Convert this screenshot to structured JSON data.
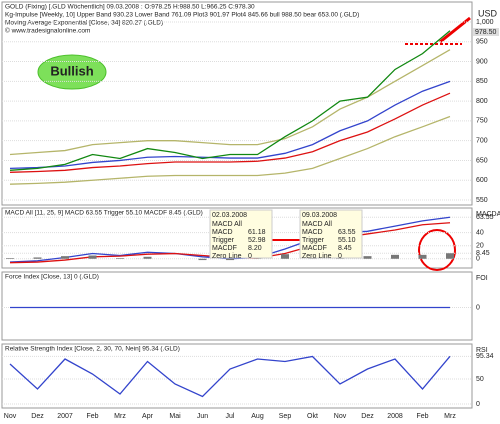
{
  "chart_data": [
    {
      "type": "line",
      "header": [
        "GOLD (Fixing) [.GLD  Wöchentlich] 09.03.2008 : O:978.25 H:988.50 L:966.25 C:978.30",
        "Kg-Impulse [Weekly, 10] Upper Band 930.23 Lower Band 761.09 Plot3 901.97 Plot4 845.66 bull 988.50 bear 653.00 (.GLD)",
        "Moving Average Exponential [Close, 34] 820.27 (.GLD)",
        "© www.tradesignalonline.com"
      ],
      "annotation": "Bullish",
      "unit": "USD",
      "last_label": "978.50",
      "categories": [
        "Nov",
        "Dez",
        "2007",
        "Feb",
        "Mrz",
        "Apr",
        "Mai",
        "Jun",
        "Jul",
        "Aug",
        "Sep",
        "Okt",
        "Nov",
        "Dez",
        "2008",
        "Feb",
        "Mrz"
      ],
      "ylim": [
        550,
        1000
      ],
      "yticks": [
        {
          "value": 1000,
          "label": "1,000"
        },
        950,
        900,
        850,
        800,
        750,
        700,
        650,
        600,
        550
      ],
      "series": [
        {
          "color": "#b5b56a",
          "values": [
            665,
            670,
            675,
            690,
            695,
            700,
            700,
            695,
            690,
            690,
            705,
            735,
            780,
            810,
            850,
            890,
            930
          ]
        },
        {
          "color": "#b5b56a",
          "values": [
            590,
            592,
            595,
            600,
            605,
            610,
            612,
            612,
            612,
            612,
            618,
            630,
            655,
            680,
            710,
            735,
            761
          ]
        },
        {
          "color": "#3344cc",
          "values": [
            630,
            632,
            636,
            645,
            650,
            658,
            660,
            658,
            656,
            656,
            668,
            690,
            725,
            750,
            790,
            825,
            850
          ]
        },
        {
          "color": "#dd1111",
          "values": [
            620,
            622,
            625,
            632,
            636,
            642,
            646,
            646,
            646,
            648,
            656,
            672,
            700,
            722,
            755,
            790,
            820
          ]
        },
        {
          "color": "#118811",
          "values": [
            625,
            630,
            640,
            665,
            655,
            680,
            670,
            655,
            665,
            665,
            710,
            750,
            800,
            810,
            880,
            920,
            978
          ]
        }
      ]
    },
    {
      "type": "macd",
      "header": "MACD All [11, 25, 9] MACD 63.55 Trigger 55.10 MACDF 8.45 (.GLD)",
      "axis_title": "MACDA",
      "ylim": [
        -8,
        70
      ],
      "yticks": [
        63.55,
        40,
        20,
        8.45,
        0
      ],
      "series": [
        {
          "color": "#3344cc",
          "values": [
            -5,
            -3,
            2,
            8,
            5,
            10,
            8,
            3,
            0,
            2,
            15,
            30,
            40,
            42,
            50,
            58,
            63.55
          ]
        },
        {
          "color": "#dd1111",
          "values": [
            -6,
            -5,
            -2,
            3,
            4,
            7,
            8,
            5,
            2,
            1,
            8,
            20,
            32,
            38,
            44,
            52,
            55.1
          ]
        },
        {
          "color": "#777777",
          "type": "bar",
          "values": [
            1,
            2,
            4,
            5,
            1,
            3,
            0,
            -2,
            -2,
            1,
            7,
            10,
            8,
            4,
            6,
            6,
            8.45
          ]
        }
      ],
      "boxes": [
        {
          "date": "02.03.2008",
          "rows": [
            [
              "MACD All",
              ""
            ],
            [
              "MACD",
              "61.18"
            ],
            [
              "Trigger",
              "52.98"
            ],
            [
              "MACDF",
              "8.20"
            ],
            [
              "Zero Line",
              "0"
            ]
          ]
        },
        {
          "date": "09.03.2008",
          "rows": [
            [
              "MACD All",
              ""
            ],
            [
              "MACD",
              "63.55"
            ],
            [
              "Trigger",
              "55.10"
            ],
            [
              "MACDF",
              "8.45"
            ],
            [
              "Zero Line",
              "0"
            ]
          ]
        }
      ]
    },
    {
      "type": "line",
      "header": "Force Index [Close, 13] 0 (.GLD)",
      "axis_title": "FOI",
      "ylim": [
        -1,
        1
      ],
      "yticks": [
        0
      ],
      "series": [
        {
          "color": "#3344cc",
          "values": [
            0,
            0,
            0,
            0,
            0,
            0,
            0,
            0,
            0,
            0,
            0,
            0,
            0,
            0,
            0,
            0,
            0
          ]
        }
      ]
    },
    {
      "type": "line",
      "header": "Relative Strength Index [Close, 2, 30, 70, Nein] 95.34 (.GLD)",
      "axis_title": "RSI",
      "ylim": [
        0,
        100
      ],
      "yticks": [
        95.34,
        50,
        0
      ],
      "series": [
        {
          "color": "#3344cc",
          "values": [
            80,
            30,
            90,
            60,
            20,
            85,
            40,
            15,
            70,
            90,
            85,
            95,
            40,
            70,
            90,
            30,
            95.34
          ]
        }
      ]
    }
  ]
}
